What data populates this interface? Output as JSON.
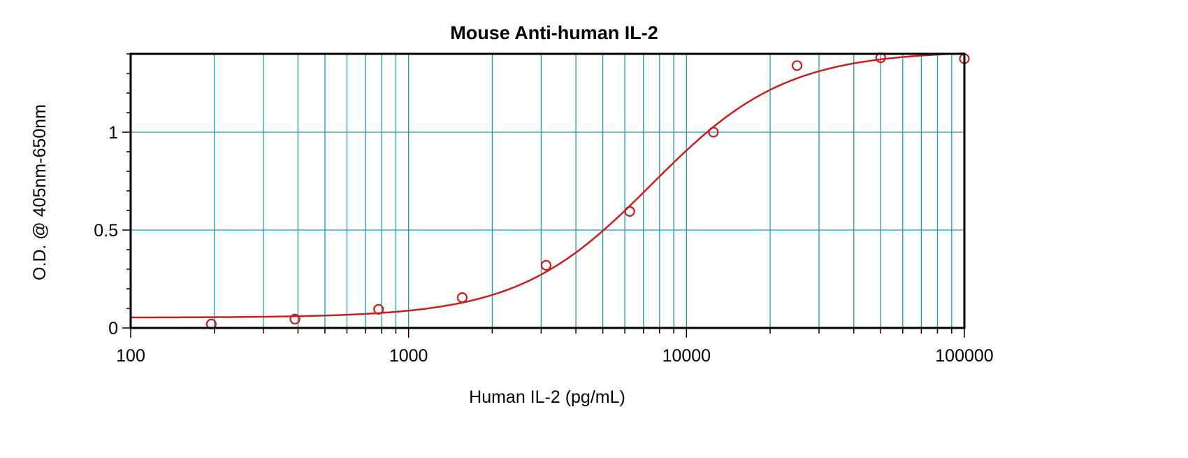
{
  "chart_data": {
    "type": "scatter",
    "title": "Mouse Anti-human IL-2",
    "xlabel": "Human IL-2 (pg/mL)",
    "ylabel": "O.D. @ 405nm-650nm",
    "x_scale": "log",
    "xlim": [
      100,
      100000
    ],
    "ylim": [
      0,
      1.4
    ],
    "x_ticks": [
      100,
      1000,
      10000,
      100000
    ],
    "x_tick_labels": [
      "100",
      "1000",
      "10000",
      "100000"
    ],
    "y_ticks": [
      0,
      0.5,
      1
    ],
    "y_tick_labels": [
      "0",
      "0.5",
      "1"
    ],
    "grid": true,
    "series": [
      {
        "values_x": [
          195,
          390,
          780,
          1560,
          3125,
          6250,
          12500,
          25000,
          50000,
          100000
        ],
        "values_y": [
          0.02,
          0.045,
          0.095,
          0.155,
          0.32,
          0.595,
          1.0,
          1.34,
          1.38,
          1.375
        ],
        "marker": "open-circle",
        "color": "#c81e1e"
      }
    ],
    "fit_curve": {
      "model": "4PL",
      "bottom": 0.053,
      "top": 1.415,
      "ec50": 7500,
      "hill": 1.8,
      "color": "#c81e1e"
    },
    "colors": {
      "grid": "#1a9bc0",
      "frame": "#000000",
      "data": "#c81e1e"
    }
  }
}
